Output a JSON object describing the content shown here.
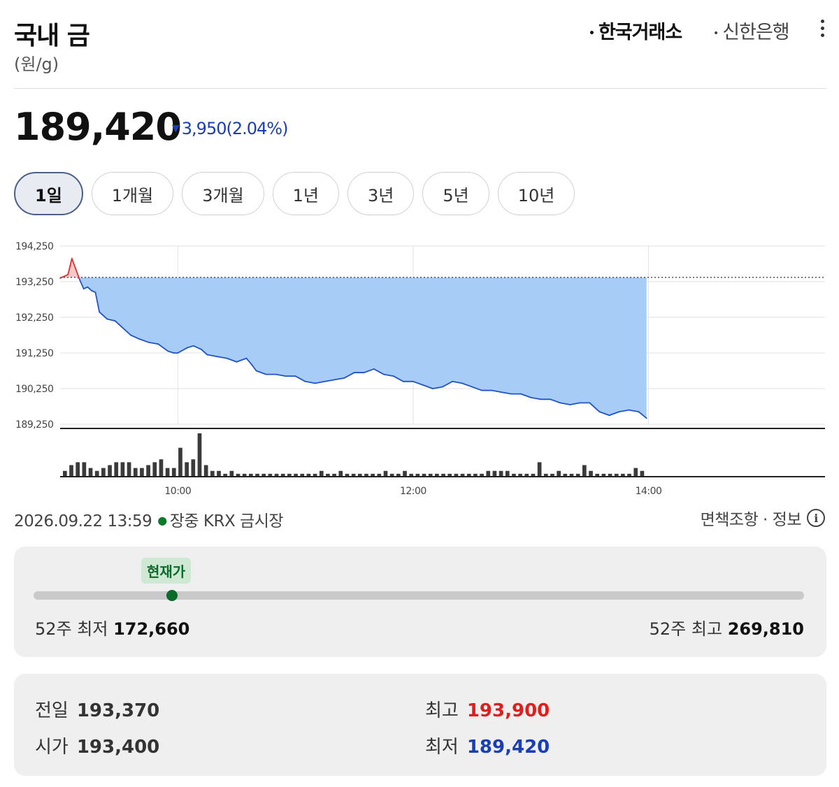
{
  "header": {
    "title": "국내 금",
    "unit": "(원/g)"
  },
  "sources": {
    "krx": "한국거래소",
    "shinhan": "신한은행",
    "bullet": "•"
  },
  "quote": {
    "price": "189,420",
    "direction_icon": "▼",
    "change": "3,950",
    "change_pct": "(2.04%)",
    "color": "#1a3fb4"
  },
  "tabs": [
    "1일",
    "1개월",
    "3개월",
    "1년",
    "3년",
    "5년",
    "10년"
  ],
  "active_tab": 0,
  "chart_data": {
    "type": "area",
    "y_ticks": [
      "194,250",
      "193,250",
      "192,250",
      "191,250",
      "190,250",
      "189,250"
    ],
    "x_ticks": [
      "10:00",
      "12:00",
      "14:00"
    ],
    "ylim": [
      189250,
      194250
    ],
    "xlim": [
      "09:00",
      "15:30"
    ],
    "reference_line": 193370,
    "grid": true,
    "fill_color": "#a7cdf7",
    "line_color": "#1f54c8",
    "up_color": "#e03030",
    "series": [
      {
        "x": [
          "09:00",
          "09:04",
          "09:06",
          "09:08",
          "09:10",
          "09:12",
          "09:14",
          "09:16",
          "09:18",
          "09:20",
          "09:24",
          "09:28",
          "09:30",
          "09:36",
          "09:40",
          "09:45",
          "09:50",
          "09:55",
          "09:58",
          "10:00",
          "10:05",
          "10:08",
          "10:12",
          "10:15",
          "10:20",
          "10:25",
          "10:30",
          "10:35",
          "10:38",
          "10:40",
          "10:45",
          "10:50",
          "10:55",
          "11:00",
          "11:05",
          "11:10",
          "11:15",
          "11:20",
          "11:25",
          "11:30",
          "11:35",
          "11:40",
          "11:45",
          "11:50",
          "11:55",
          "12:00",
          "12:05",
          "12:10",
          "12:15",
          "12:20",
          "12:25",
          "12:30",
          "12:35",
          "12:40",
          "12:45",
          "12:50",
          "12:55",
          "13:00",
          "13:05",
          "13:10",
          "13:15",
          "13:20",
          "13:25",
          "13:30",
          "13:35",
          "13:40",
          "13:45",
          "13:50",
          "13:55",
          "13:59"
        ],
        "values": [
          193350,
          193450,
          193900,
          193600,
          193300,
          193050,
          193100,
          193000,
          192950,
          192400,
          192200,
          192150,
          192050,
          191750,
          191650,
          191550,
          191500,
          191300,
          191250,
          191250,
          191400,
          191450,
          191350,
          191200,
          191150,
          191100,
          191000,
          191100,
          190900,
          190750,
          190650,
          190650,
          190600,
          190600,
          190450,
          190400,
          190450,
          190500,
          190550,
          190700,
          190700,
          190800,
          190650,
          190600,
          190450,
          190450,
          190350,
          190250,
          190300,
          190450,
          190400,
          190300,
          190200,
          190200,
          190150,
          190100,
          190100,
          190000,
          189950,
          189950,
          189850,
          189800,
          189850,
          189850,
          189600,
          189500,
          189600,
          189650,
          189600,
          189420
        ]
      }
    ],
    "volume": [
      2,
      4,
      5,
      5,
      3,
      2,
      3,
      4,
      5,
      5,
      5,
      3,
      3,
      4,
      5,
      6,
      3,
      3,
      10,
      5,
      6,
      15,
      4,
      2,
      2,
      1,
      2,
      1,
      1,
      1,
      1,
      1,
      1,
      1,
      1,
      1,
      1,
      1,
      1,
      1,
      2,
      1,
      1,
      2,
      1,
      1,
      1,
      1,
      1,
      1,
      2,
      1,
      1,
      2,
      1,
      1,
      1,
      1,
      1,
      1,
      1,
      1,
      1,
      1,
      1,
      1,
      2,
      2,
      2,
      2,
      1,
      1,
      1,
      1,
      5,
      1,
      1,
      2,
      1,
      1,
      1,
      4,
      2,
      1,
      1,
      1,
      1,
      1,
      1,
      3,
      2
    ]
  },
  "footer": {
    "timestamp": "2026.09.22 13:59",
    "status": "장중 KRX 금시장",
    "disclaimer": "면책조항 · 정보",
    "info_icon": "i"
  },
  "range52": {
    "badge": "현재가",
    "low_label": "52주 최저",
    "low": "172,660",
    "high_label": "52주 최고",
    "high": "269,810",
    "position": 0.18
  },
  "stats": {
    "prev_label": "전일",
    "prev": "193,370",
    "open_label": "시가",
    "open": "193,400",
    "high_label": "최고",
    "high": "193,900",
    "high_color": "#e01e1e",
    "low_label": "최저",
    "low": "189,420",
    "low_color": "#1a3fb4"
  }
}
